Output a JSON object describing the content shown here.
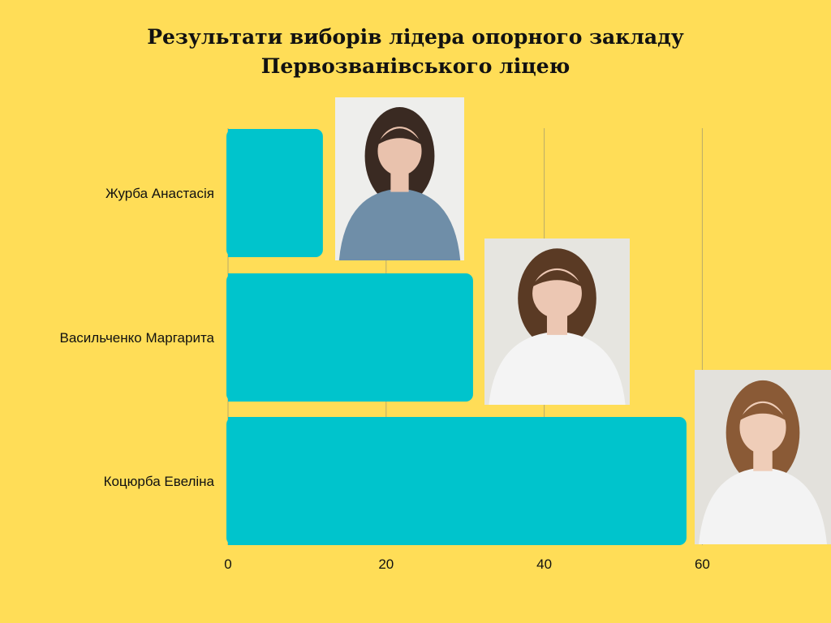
{
  "title": {
    "line1": "Результати виборів лідера опорного закладу",
    "line2": "Первозванівського ліцею"
  },
  "chart_data": {
    "type": "bar",
    "orientation": "horizontal",
    "categories": [
      "Журба Анастасія",
      "Васильченко Маргарита",
      "Коцюрба Евеліна"
    ],
    "values": [
      12,
      31,
      58
    ],
    "xlim": [
      0,
      60
    ],
    "xticks": [
      "0",
      "20",
      "40",
      "60"
    ],
    "grid": true,
    "bar_color": "#00c4cc",
    "background_color": "#ffdd57",
    "photos": [
      "photo-zhurba",
      "photo-vasylchenko",
      "photo-kotsiurba"
    ]
  }
}
